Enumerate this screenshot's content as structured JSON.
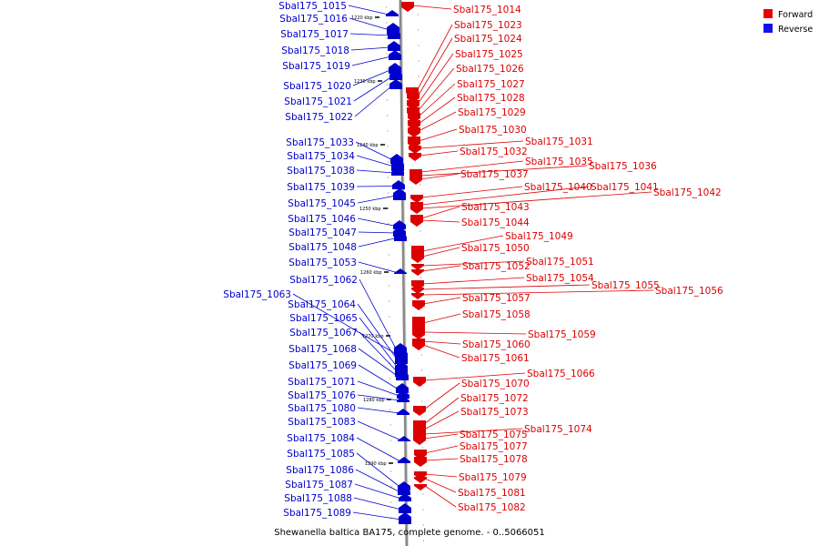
{
  "footer": "Shewanella baltica BA175, complete genome. - 0..5066051",
  "legend": [
    {
      "label": "Forward",
      "color": "#ee0000"
    },
    {
      "label": "Reverse",
      "color": "#1111ee"
    }
  ],
  "colors": {
    "forward": "#dd0000",
    "reverse": "#0000cc",
    "axis": "#888888"
  },
  "ticks": [
    "1220 kbp",
    "1230 kbp",
    "1240 kbp",
    "1250 kbp",
    "1260 kbp",
    "1270 kbp",
    "1280 kbp",
    "1290 kbp"
  ],
  "reverse_genes": [
    "Sbal175_1015",
    "Sbal175_1016",
    "Sbal175_1017",
    "Sbal175_1018",
    "Sbal175_1019",
    "Sbal175_1020",
    "Sbal175_1021",
    "Sbal175_1022",
    "Sbal175_1033",
    "Sbal175_1034",
    "Sbal175_1038",
    "Sbal175_1039",
    "Sbal175_1045",
    "Sbal175_1046",
    "Sbal175_1047",
    "Sbal175_1048",
    "Sbal175_1053",
    "Sbal175_1062",
    "Sbal175_1063",
    "Sbal175_1064",
    "Sbal175_1065",
    "Sbal175_1067",
    "Sbal175_1068",
    "Sbal175_1069",
    "Sbal175_1071",
    "Sbal175_1076",
    "Sbal175_1080",
    "Sbal175_1083",
    "Sbal175_1084",
    "Sbal175_1085",
    "Sbal175_1086",
    "Sbal175_1087",
    "Sbal175_1088",
    "Sbal175_1089"
  ],
  "forward_genes": [
    "Sbal175_1014",
    "Sbal175_1023",
    "Sbal175_1024",
    "Sbal175_1025",
    "Sbal175_1026",
    "Sbal175_1027",
    "Sbal175_1028",
    "Sbal175_1029",
    "Sbal175_1030",
    "Sbal175_1031",
    "Sbal175_1032",
    "Sbal175_1035",
    "Sbal175_1036",
    "Sbal175_1037",
    "Sbal175_1040",
    "Sbal175_1041",
    "Sbal175_1042",
    "Sbal175_1043",
    "Sbal175_1044",
    "Sbal175_1049",
    "Sbal175_1050",
    "Sbal175_1051",
    "Sbal175_1052",
    "Sbal175_1054",
    "Sbal175_1055",
    "Sbal175_1056",
    "Sbal175_1057",
    "Sbal175_1058",
    "Sbal175_1059",
    "Sbal175_1060",
    "Sbal175_1061",
    "Sbal175_1066",
    "Sbal175_1070",
    "Sbal175_1072",
    "Sbal175_1073",
    "Sbal175_1074",
    "Sbal175_1075",
    "Sbal175_1077",
    "Sbal175_1078",
    "Sbal175_1079",
    "Sbal175_1081",
    "Sbal175_1082"
  ]
}
